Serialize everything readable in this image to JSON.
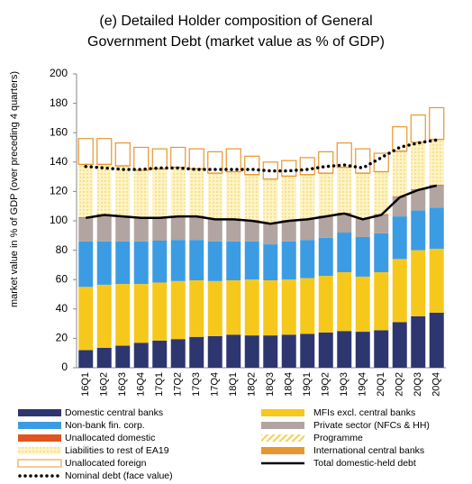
{
  "chart_data": {
    "type": "stacked_bar_line",
    "title": [
      "(e) Detailed Holder composition of General",
      "Government Debt (market value as % of GDP)"
    ],
    "y_label": "market value in % of GDP (over preceding 4 quarters)",
    "categories": [
      "16Q1",
      "16Q2",
      "16Q3",
      "16Q4",
      "17Q1",
      "17Q2",
      "17Q3",
      "17Q4",
      "18Q1",
      "18Q2",
      "18Q3",
      "18Q4",
      "19Q1",
      "19Q2",
      "19Q3",
      "19Q4",
      "20Q1",
      "20Q2",
      "20Q3",
      "20Q4"
    ],
    "ylim": [
      0,
      200
    ],
    "yticks": [
      0,
      20,
      40,
      60,
      80,
      100,
      120,
      140,
      160,
      180,
      200
    ],
    "grid": false,
    "series": [
      {
        "name": "Domestic central banks",
        "color": "#2e3670",
        "pattern": "solid",
        "values": [
          12,
          13.5,
          15,
          17,
          18.5,
          19.5,
          21,
          21.5,
          22.5,
          22,
          22,
          22.5,
          23,
          24,
          25,
          24.5,
          25.5,
          31,
          35,
          37.5
        ]
      },
      {
        "name": "MFIs excl. central banks",
        "color": "#f7c81c",
        "pattern": "solid",
        "values": [
          43,
          43,
          42,
          40,
          39.5,
          39.5,
          38.5,
          37.5,
          37,
          38,
          37.5,
          37.5,
          38,
          38.5,
          40,
          37.5,
          39.5,
          43,
          45,
          43.5
        ]
      },
      {
        "name": "Non-bank fin. corp.",
        "color": "#3c9ce3",
        "pattern": "solid",
        "values": [
          31,
          29.5,
          29,
          29,
          28.5,
          28,
          27.5,
          27,
          26.5,
          26,
          24.5,
          26,
          26,
          26,
          27,
          27,
          26.5,
          29,
          27,
          28
        ]
      },
      {
        "name": "Private sector (NFCs & HH)",
        "color": "#b2a4a0",
        "pattern": "solid",
        "values": [
          16,
          18,
          17,
          16,
          15.5,
          16,
          16,
          15,
          15,
          14,
          14,
          14,
          14,
          14.5,
          13,
          12,
          12.5,
          13,
          14,
          15
        ]
      },
      {
        "name": "Unallocated domestic",
        "color": "#e2541e",
        "pattern": "solid",
        "values": [
          0.5,
          0.5,
          0.5,
          0.5,
          0.5,
          0.5,
          0.5,
          0.5,
          0.5,
          0.5,
          0.5,
          0.5,
          0.5,
          0.5,
          0.5,
          0.5,
          0.5,
          0.5,
          0.5,
          0.5
        ]
      },
      {
        "name": "Programme",
        "color": "#f5d050",
        "pattern": "hatch",
        "values": [
          0,
          0,
          0,
          0,
          0,
          0,
          0,
          0,
          0,
          0,
          0,
          0,
          0,
          0,
          0,
          0,
          0,
          0,
          0,
          0
        ]
      },
      {
        "name": "Liabilities to rest of EA19",
        "color": "#f5d050",
        "pattern": "dots",
        "values": [
          35.5,
          33.5,
          33.5,
          31.5,
          32.5,
          32.5,
          31.5,
          30.5,
          31.5,
          30.5,
          29.5,
          29.5,
          29.5,
          28.5,
          30.5,
          30.5,
          28.5,
          30.5,
          31.5,
          30.5
        ]
      },
      {
        "name": "International central banks",
        "color": "#e8962e",
        "pattern": "solid",
        "values": [
          0.5,
          0.5,
          0.5,
          0.5,
          0.5,
          0.5,
          0.5,
          0.5,
          0.5,
          0.5,
          0.5,
          0.5,
          0.5,
          0.5,
          0.5,
          0.5,
          0.5,
          0.5,
          0.5,
          0.5
        ]
      },
      {
        "name": "Unallocated foreign",
        "color": "#e8962e",
        "pattern": "outline",
        "values": [
          17.5,
          17.5,
          15.5,
          15.5,
          13.5,
          13.5,
          13.5,
          14.5,
          15.5,
          12.5,
          11.5,
          10.5,
          11.5,
          14.5,
          16.5,
          16.5,
          12.5,
          16.5,
          18.5,
          21.5
        ]
      }
    ],
    "lines": [
      {
        "name": "Total domestic-held debt",
        "color": "#000000",
        "style": "solid",
        "values": [
          102,
          104,
          103,
          102,
          102,
          103,
          103,
          101,
          101,
          100,
          98,
          100,
          101,
          103,
          105,
          101,
          104,
          116,
          121,
          124
        ]
      },
      {
        "name": "Nominal debt (face value)",
        "color": "#000000",
        "style": "dotted",
        "values": [
          137,
          136,
          135,
          135,
          136,
          136,
          135,
          135,
          135,
          135,
          134,
          134,
          135,
          137,
          138,
          136,
          143,
          150,
          153,
          155
        ]
      }
    ]
  }
}
